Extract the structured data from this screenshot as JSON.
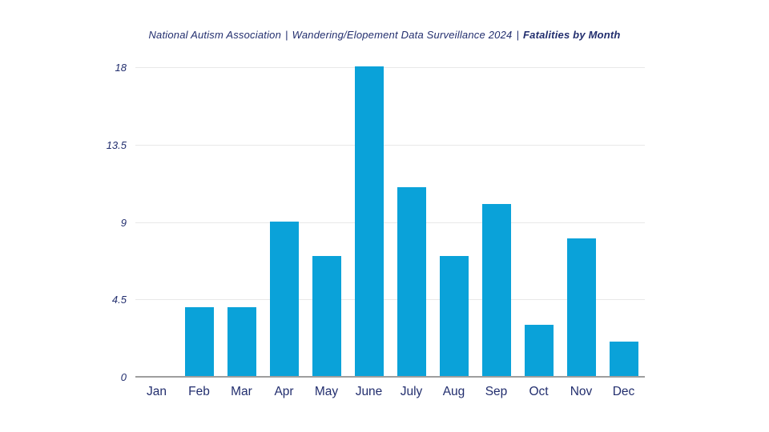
{
  "title": {
    "org": "National Autism Association",
    "survey": "Wandering/Elopement Data Surveillance 2024",
    "metric": "Fatalities by Month",
    "separator": "|"
  },
  "colors": {
    "text_navy": "#222e6e",
    "bar_fill": "#0aa2d9",
    "gridline": "#e8e8e8",
    "axis_line": "#9e9e9e",
    "background": "#ffffff"
  },
  "chart_data": {
    "type": "bar",
    "title": "National Autism Association | Wandering/Elopement Data Surveillance 2024 | Fatalities by Month",
    "categories": [
      "Jan",
      "Feb",
      "Mar",
      "Apr",
      "May",
      "June",
      "July",
      "Aug",
      "Sep",
      "Oct",
      "Nov",
      "Dec"
    ],
    "values": [
      0,
      4,
      4,
      9,
      7,
      18,
      11,
      7,
      10,
      3,
      8,
      2
    ],
    "xlabel": "",
    "ylabel": "",
    "ylim": [
      0,
      18
    ],
    "yticks": [
      0,
      4.5,
      9,
      13.5,
      18
    ],
    "ytick_labels": [
      "0",
      "4.5",
      "9",
      "13.5",
      "18"
    ],
    "grid": true,
    "legend": false,
    "bar_color": "#0aa2d9"
  }
}
